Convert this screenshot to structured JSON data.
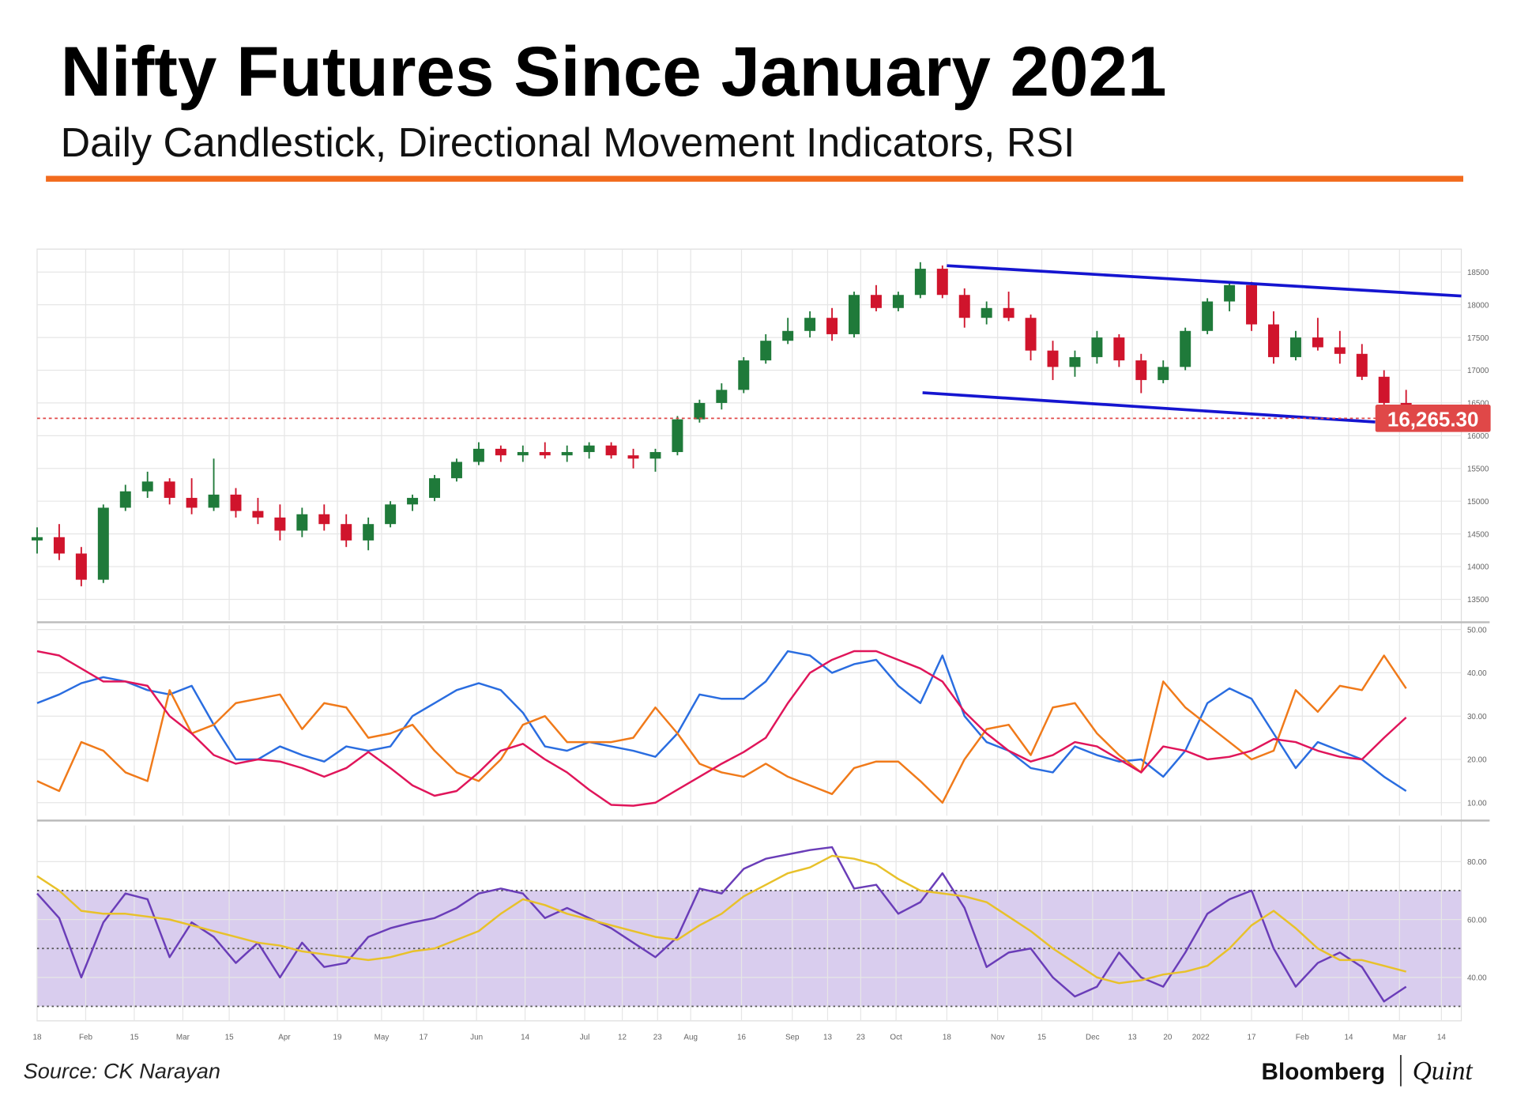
{
  "header": {
    "title": "Nifty Futures Since January 2021",
    "subtitle": "Daily Candlestick, Directional Movement Indicators, RSI"
  },
  "chart_data": [
    {
      "type": "candlestick",
      "x": [
        0,
        1,
        2,
        3,
        4,
        5,
        6,
        7,
        8,
        9,
        10,
        11,
        12,
        13,
        14,
        15,
        16,
        17,
        18,
        19,
        20,
        21,
        22,
        23,
        24,
        25,
        26,
        27,
        28,
        29,
        30,
        31,
        32,
        33,
        34,
        35,
        36,
        37,
        38,
        39,
        40,
        41,
        42,
        43,
        44,
        45,
        46,
        47,
        48,
        49,
        50,
        51,
        52,
        53,
        54,
        55,
        56,
        57,
        58,
        59,
        60,
        61,
        62
      ],
      "open": [
        14400,
        14450,
        14200,
        13800,
        14900,
        15150,
        15300,
        15050,
        14900,
        15100,
        14850,
        14750,
        14550,
        14800,
        14650,
        14400,
        14650,
        14950,
        15050,
        15350,
        15600,
        15800,
        15700,
        15750,
        15700,
        15750,
        15850,
        15700,
        15650,
        15750,
        16250,
        16500,
        16700,
        17150,
        17450,
        17600,
        17800,
        17550,
        18150,
        17950,
        18150,
        18550,
        18150,
        17800,
        17950,
        17800,
        17300,
        17050,
        17200,
        17500,
        17150,
        16850,
        17050,
        17600,
        18050,
        18300,
        17700,
        17200,
        17500,
        17350,
        17250,
        16900,
        16500
      ],
      "high": [
        14600,
        14650,
        14300,
        14950,
        15250,
        15450,
        15350,
        15350,
        15650,
        15200,
        15050,
        14950,
        14900,
        14950,
        14800,
        14750,
        15000,
        15100,
        15400,
        15650,
        15900,
        15850,
        15850,
        15900,
        15850,
        15900,
        15900,
        15800,
        15800,
        16300,
        16550,
        16800,
        17200,
        17550,
        17800,
        17900,
        17950,
        18200,
        18300,
        18200,
        18650,
        18600,
        18250,
        18050,
        18200,
        17850,
        17450,
        17300,
        17600,
        17550,
        17250,
        17150,
        17650,
        18100,
        18350,
        18350,
        17900,
        17600,
        17800,
        17600,
        17400,
        17000,
        16700
      ],
      "low": [
        14200,
        14100,
        13700,
        13750,
        14850,
        15050,
        14950,
        14800,
        14850,
        14750,
        14650,
        14400,
        14450,
        14550,
        14300,
        14250,
        14600,
        14850,
        15000,
        15300,
        15550,
        15600,
        15600,
        15650,
        15600,
        15650,
        15650,
        15500,
        15450,
        15700,
        16200,
        16400,
        16650,
        17100,
        17400,
        17500,
        17450,
        17500,
        17900,
        17900,
        18100,
        18100,
        17650,
        17700,
        17750,
        17150,
        16850,
        16900,
        17100,
        17050,
        16650,
        16800,
        17000,
        17550,
        17900,
        17600,
        17100,
        17150,
        17300,
        17100,
        16850,
        16400,
        16200
      ],
      "close": [
        14450,
        14200,
        13800,
        14900,
        15150,
        15300,
        15050,
        14900,
        15100,
        14850,
        14750,
        14550,
        14800,
        14650,
        14400,
        14650,
        14950,
        15050,
        15350,
        15600,
        15800,
        15700,
        15750,
        15700,
        15750,
        15850,
        15700,
        15650,
        15750,
        16250,
        16500,
        16700,
        17150,
        17450,
        17600,
        17800,
        17550,
        18150,
        17950,
        18150,
        18550,
        18150,
        17800,
        17950,
        17800,
        17300,
        17050,
        17200,
        17500,
        17150,
        16850,
        17050,
        17600,
        18050,
        18300,
        17700,
        17200,
        17500,
        17350,
        17250,
        16900,
        16500,
        16300
      ],
      "up_color": "#1f7a3a",
      "down_color": "#d0142c",
      "xlim": [
        0,
        64.5
      ],
      "xticks": [
        {
          "value": 0,
          "label": "18"
        },
        {
          "value": 2.2,
          "label": "Feb"
        },
        {
          "value": 4.4,
          "label": "15"
        },
        {
          "value": 6.6,
          "label": "Mar"
        },
        {
          "value": 8.7,
          "label": "15"
        },
        {
          "value": 11.2,
          "label": "Apr"
        },
        {
          "value": 13.6,
          "label": "19"
        },
        {
          "value": 15.6,
          "label": "May"
        },
        {
          "value": 17.5,
          "label": "17"
        },
        {
          "value": 19.9,
          "label": "Jun"
        },
        {
          "value": 22.1,
          "label": "14"
        },
        {
          "value": 24.8,
          "label": "Jul"
        },
        {
          "value": 26.5,
          "label": "12"
        },
        {
          "value": 28.1,
          "label": "23"
        },
        {
          "value": 29.6,
          "label": "Aug"
        },
        {
          "value": 31.9,
          "label": "16"
        },
        {
          "value": 34.2,
          "label": "Sep"
        },
        {
          "value": 35.8,
          "label": "13"
        },
        {
          "value": 37.3,
          "label": "23"
        },
        {
          "value": 38.9,
          "label": "Oct"
        },
        {
          "value": 41.2,
          "label": "18"
        },
        {
          "value": 43.5,
          "label": "Nov"
        },
        {
          "value": 45.5,
          "label": "15"
        },
        {
          "value": 47.8,
          "label": "Dec"
        },
        {
          "value": 49.6,
          "label": "13"
        },
        {
          "value": 51.2,
          "label": "20"
        },
        {
          "value": 52.7,
          "label": "2022"
        },
        {
          "value": 55.0,
          "label": "17"
        },
        {
          "value": 57.3,
          "label": "Feb"
        },
        {
          "value": 59.4,
          "label": "14"
        },
        {
          "value": 61.7,
          "label": "Mar"
        },
        {
          "value": 63.6,
          "label": "14"
        }
      ],
      "ylim": [
        13180,
        18850
      ],
      "yticks": [
        13500,
        14000,
        14500,
        15000,
        15500,
        16000,
        16500,
        17000,
        17500,
        18000,
        18500
      ],
      "grid": true,
      "last_price": {
        "value": 16265.3,
        "label": "16,265.30",
        "color": "#e04848"
      },
      "trendlines": [
        {
          "x": [
            41.2,
            64.5
          ],
          "values": [
            18597,
            18134
          ],
          "color": "#1515d0"
        },
        {
          "x": [
            40.1,
            60.6
          ],
          "values": [
            16657,
            16209
          ],
          "color": "#1515d0"
        }
      ]
    },
    {
      "type": "line",
      "x": [
        0,
        1,
        2,
        3,
        4,
        5,
        6,
        7,
        8,
        9,
        10,
        11,
        12,
        13,
        14,
        15,
        16,
        17,
        18,
        19,
        20,
        21,
        22,
        23,
        24,
        25,
        26,
        27,
        28,
        29,
        30,
        31,
        32,
        33,
        34,
        35,
        36,
        37,
        38,
        39,
        40,
        41,
        42,
        43,
        44,
        45,
        46,
        47,
        48,
        49,
        50,
        51,
        52,
        53,
        54,
        55,
        56,
        57,
        58,
        59,
        60,
        61,
        62
      ],
      "series": [
        {
          "color": "#2a6de0",
          "values": [
            33,
            35,
            37.6,
            39,
            38,
            36,
            35,
            37,
            28,
            20,
            20,
            23,
            21,
            19.5,
            23,
            22,
            23,
            30,
            33,
            36,
            37.6,
            36,
            30.8,
            23,
            22,
            24,
            23,
            22,
            20.6,
            26,
            35,
            34,
            34,
            38,
            45,
            44,
            40,
            42,
            43,
            37,
            33,
            44,
            30,
            24,
            22,
            18,
            17,
            23,
            21,
            19.5,
            20,
            16,
            22,
            33,
            36.4,
            34,
            26,
            18,
            24,
            22,
            20,
            16,
            12.7
          ]
        },
        {
          "color": "#f07a1a",
          "values": [
            15,
            12.7,
            24,
            22,
            17,
            15,
            36,
            26,
            28,
            33,
            34,
            35,
            27,
            33,
            32,
            25,
            26,
            28,
            22,
            17,
            15,
            20,
            28,
            30,
            24,
            24,
            24,
            25,
            32,
            26,
            19,
            17,
            16,
            19,
            16,
            14,
            12,
            18,
            19.5,
            19.5,
            15,
            10,
            20,
            27,
            28,
            21,
            32,
            33,
            26,
            21,
            17,
            38,
            32,
            28,
            24,
            20,
            22,
            36,
            31,
            37,
            36,
            44,
            36.4
          ]
        },
        {
          "color": "#e0155a",
          "values": [
            45,
            44,
            41,
            38,
            38,
            37,
            30,
            26,
            21,
            19,
            20,
            19.5,
            18,
            16,
            18,
            21.7,
            18,
            14,
            11.6,
            12.7,
            17,
            22,
            23.6,
            20,
            17,
            13,
            9.5,
            9.3,
            10,
            13,
            16,
            19,
            21.7,
            25,
            33,
            40,
            43,
            45,
            45,
            43,
            41,
            38,
            31,
            26,
            22,
            19.5,
            21,
            24,
            23,
            20,
            17,
            23,
            22,
            20,
            20.6,
            22,
            24.7,
            24,
            22,
            20.6,
            20,
            25,
            29.7
          ]
        }
      ],
      "xlim": [
        0,
        64.5
      ],
      "ylim": [
        7,
        51
      ],
      "yticks": [
        {
          "value": 10,
          "label": "10.00"
        },
        {
          "value": 20,
          "label": "20.00"
        },
        {
          "value": 30,
          "label": "30.00"
        },
        {
          "value": 40,
          "label": "40.00"
        },
        {
          "value": 50,
          "label": "50.00"
        }
      ],
      "grid": true
    },
    {
      "type": "line",
      "x": [
        0,
        1,
        2,
        3,
        4,
        5,
        6,
        7,
        8,
        9,
        10,
        11,
        12,
        13,
        14,
        15,
        16,
        17,
        18,
        19,
        20,
        21,
        22,
        23,
        24,
        25,
        26,
        27,
        28,
        29,
        30,
        31,
        32,
        33,
        34,
        35,
        36,
        37,
        38,
        39,
        40,
        41,
        42,
        43,
        44,
        45,
        46,
        47,
        48,
        49,
        50,
        51,
        52,
        53,
        54,
        55,
        56,
        57,
        58,
        59,
        60,
        61,
        62
      ],
      "series": [
        {
          "color": "#6a3db8",
          "values": [
            69,
            60.5,
            40,
            59,
            69,
            67,
            47,
            59,
            54,
            45,
            52,
            40,
            52,
            43.6,
            45,
            54,
            57,
            59,
            60.5,
            64,
            69,
            70.7,
            69,
            60.5,
            64,
            60.5,
            57,
            52,
            47,
            54,
            70.7,
            69,
            77.5,
            81,
            82.5,
            84,
            85,
            70.7,
            72,
            62,
            66,
            76,
            64,
            43.6,
            48.6,
            50,
            40,
            33.4,
            36.8,
            48.6,
            40,
            36.8,
            48.6,
            62,
            67,
            70,
            50,
            36.8,
            45,
            48.6,
            43.6,
            31.7,
            36.8
          ]
        },
        {
          "color": "#e8c12a",
          "values": [
            75,
            70,
            63,
            62,
            62,
            61,
            60,
            58,
            56,
            54,
            52,
            51,
            49,
            48,
            47,
            46,
            47,
            49,
            50,
            53,
            56,
            62,
            67,
            65,
            62,
            60,
            58,
            56,
            54,
            53,
            58,
            62,
            68,
            72,
            76,
            78,
            82,
            81,
            79,
            74,
            70,
            69,
            68,
            66,
            61,
            56,
            50,
            45,
            40,
            38,
            39,
            41,
            42,
            44,
            50,
            58,
            63,
            57,
            50,
            46,
            46,
            44,
            42
          ]
        }
      ],
      "xlim": [
        0,
        64.5
      ],
      "ylim": [
        25,
        92.5
      ],
      "yticks": [
        {
          "value": 40,
          "label": "40.00"
        },
        {
          "value": 60,
          "label": "60.00"
        },
        {
          "value": 80,
          "label": "80.00"
        }
      ],
      "band": [
        30,
        70
      ],
      "band_color": "#d9cdee",
      "reference_lines": [
        30,
        50,
        70
      ],
      "grid": true
    }
  ],
  "footer": {
    "source": "Source: CK Narayan",
    "brand": "Bloomberg",
    "brand_second": "Quint"
  }
}
